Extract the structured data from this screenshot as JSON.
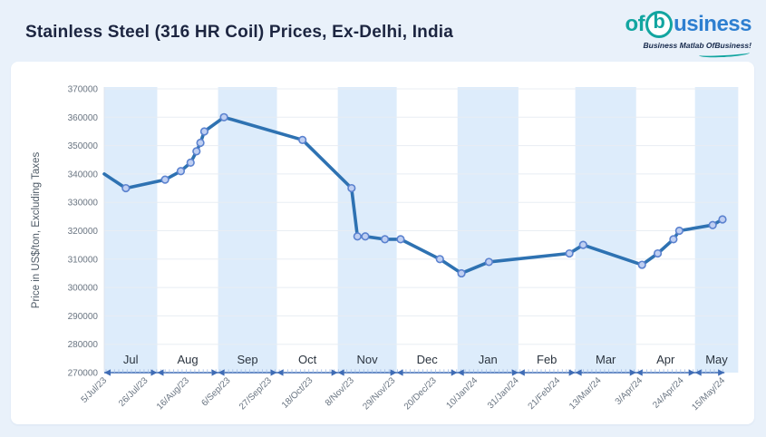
{
  "header": {
    "title": "Stainless Steel (316 HR Coil) Prices, Ex-Delhi, India",
    "logo": {
      "part1": "of",
      "part2": "b",
      "part3": "usiness",
      "tagline": "Business Matlab OfBusiness!",
      "teal": "#12a5a0",
      "blue": "#2e7fd0"
    }
  },
  "chart_data": {
    "type": "line",
    "title": "Stainless Steel (316 HR Coil) Prices, Ex-Delhi, India",
    "ylabel": "Price in US$/ton, Excluding Taxes",
    "xlabel": "",
    "ylim": [
      270000,
      370000
    ],
    "ytick_interval": 10000,
    "yticks": [
      370000,
      360000,
      350000,
      340000,
      330000,
      320000,
      310000,
      300000,
      290000,
      280000,
      270000
    ],
    "x_tick_labels": [
      "5/Jul/23",
      "26/Jul/23",
      "16/Aug/23",
      "6/Sep/23",
      "27/Sep/23",
      "18/Oct/23",
      "8/Nov/23",
      "29/Nov/23",
      "20/Dec/23",
      "10/Jan/24",
      "31/Jan/24",
      "21/Feb/24",
      "13/Mar/24",
      "3/Apr/24",
      "24/Apr/24",
      "15/May/24"
    ],
    "x_tick_days": [
      0,
      21,
      42,
      63,
      84,
      105,
      126,
      147,
      168,
      189,
      210,
      231,
      252,
      273,
      294,
      315
    ],
    "months": [
      {
        "label": "Jul",
        "startDay": 0
      },
      {
        "label": "Aug",
        "startDay": 27
      },
      {
        "label": "Sep",
        "startDay": 58
      },
      {
        "label": "Oct",
        "startDay": 88
      },
      {
        "label": "Nov",
        "startDay": 119
      },
      {
        "label": "Dec",
        "startDay": 149
      },
      {
        "label": "Jan",
        "startDay": 180
      },
      {
        "label": "Feb",
        "startDay": 211
      },
      {
        "label": "Mar",
        "startDay": 240
      },
      {
        "label": "Apr",
        "startDay": 271
      },
      {
        "label": "May",
        "startDay": 301
      }
    ],
    "axis_end_day": 323,
    "ruler_end_day": 316,
    "grid": true,
    "legend": false,
    "series": [
      {
        "name": "316 HR Coil price",
        "points": [
          {
            "date": "5/Jul/23",
            "day": 0,
            "value": 340000
          },
          {
            "date": "16/Jul/23",
            "day": 11,
            "value": 335000
          },
          {
            "date": "5/Aug/23",
            "day": 31,
            "value": 338000
          },
          {
            "date": "13/Aug/23",
            "day": 39,
            "value": 341000
          },
          {
            "date": "18/Aug/23",
            "day": 44,
            "value": 344000
          },
          {
            "date": "21/Aug/23",
            "day": 47,
            "value": 348000
          },
          {
            "date": "23/Aug/23",
            "day": 49,
            "value": 351000
          },
          {
            "date": "25/Aug/23",
            "day": 51,
            "value": 355000
          },
          {
            "date": "4/Sep/23",
            "day": 61,
            "value": 360000
          },
          {
            "date": "14/Oct/23",
            "day": 101,
            "value": 352000
          },
          {
            "date": "8/Nov/23",
            "day": 126,
            "value": 335000
          },
          {
            "date": "11/Nov/23",
            "day": 129,
            "value": 318000
          },
          {
            "date": "15/Nov/23",
            "day": 133,
            "value": 318000
          },
          {
            "date": "25/Nov/23",
            "day": 143,
            "value": 317000
          },
          {
            "date": "3/Dec/23",
            "day": 151,
            "value": 317000
          },
          {
            "date": "23/Dec/23",
            "day": 171,
            "value": 310000
          },
          {
            "date": "3/Jan/24",
            "day": 182,
            "value": 305000
          },
          {
            "date": "17/Jan/24",
            "day": 196,
            "value": 309000
          },
          {
            "date": "27/Feb/24",
            "day": 237,
            "value": 312000
          },
          {
            "date": "5/Mar/24",
            "day": 244,
            "value": 315000
          },
          {
            "date": "4/Apr/24",
            "day": 274,
            "value": 308000
          },
          {
            "date": "12/Apr/24",
            "day": 282,
            "value": 312000
          },
          {
            "date": "20/Apr/24",
            "day": 290,
            "value": 317000
          },
          {
            "date": "23/Apr/24",
            "day": 293,
            "value": 320000
          },
          {
            "date": "10/May/24",
            "day": 310,
            "value": 322000
          },
          {
            "date": "15/May/24",
            "day": 315,
            "value": 324000
          }
        ]
      }
    ],
    "colors": {
      "line": "#2e72b2",
      "marker_fill": "#bfcff2",
      "marker_stroke": "#5b82cf",
      "band": "#ddecfb",
      "grid": "#e8edf3",
      "ruler": "#3f6cb5",
      "ruler_tick": "#a6bfe6",
      "tick_text": "#6a7582",
      "month_text": "#2b343f",
      "page_bg": "#e9f1fa",
      "card_bg": "#ffffff",
      "title_text": "#1c2540"
    }
  }
}
